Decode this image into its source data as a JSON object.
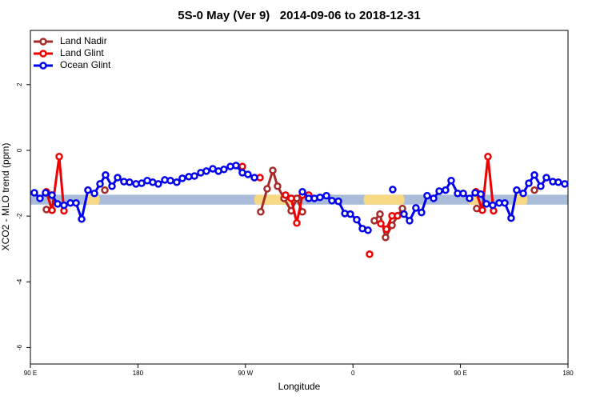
{
  "chart_data": {
    "type": "line",
    "title": "5S-0 May (Ver 9)   2014-09-06 to 2018-12-31",
    "x_label": "Longitude",
    "y_label": "XCO2 - MLO trend (ppm)",
    "xlim": [
      90,
      540
    ],
    "xticks": [
      {
        "value": 90,
        "label": "90 E"
      },
      {
        "value": 180,
        "label": "180"
      },
      {
        "value": 270,
        "label": "90 W"
      },
      {
        "value": 360,
        "label": "0"
      },
      {
        "value": 450,
        "label": "90 E"
      },
      {
        "value": 540,
        "label": "180"
      }
    ],
    "ylim": [
      -6.5,
      3.65
    ],
    "yticks": [
      2,
      0,
      -2,
      -4,
      -6
    ],
    "grid": false,
    "legend": "top-left",
    "land_mask": {
      "ylim": [
        -1.65,
        -1.35
      ],
      "color": "#a9bcd9",
      "land_color": "#f7d983",
      "land": [
        [
          137,
          148
        ],
        [
          277.5,
          311
        ],
        [
          369,
          403
        ],
        [
          456,
          466
        ],
        [
          495,
          506
        ]
      ]
    },
    "series": [
      {
        "name": "Land Nadir",
        "color": "#a52a2a",
        "x": [
          103.4,
          108.1,
          null,
          152.3,
          null,
          282.8,
          288.2,
          292.9,
          296.9,
          302.3,
          308.3,
          313.0,
          317.7,
          null,
          377.9,
          382.6,
          387.3,
          392.7,
          397.3,
          401.4,
          null,
          463.6,
          null,
          511.9
        ],
        "values": [
          -1.8,
          -1.82,
          null,
          -1.21,
          null,
          -1.87,
          -1.17,
          -0.61,
          -1.09,
          -1.46,
          -1.84,
          -1.46,
          -1.87,
          null,
          -2.14,
          -1.94,
          -2.65,
          -2.28,
          -1.99,
          -1.77,
          null,
          -1.77,
          null,
          -1.21
        ]
      },
      {
        "name": "Land Glint",
        "color": "#ee0000",
        "x": [
          103.4,
          108.1,
          114.1,
          118.1,
          null,
          267.4,
          null,
          282.2,
          null,
          303.6,
          308.3,
          313.0,
          317.7,
          323.0,
          null,
          373.9,
          null,
          383.3,
          388.0,
          392.7,
          397.3,
          null,
          463.0,
          468.3,
          473.0,
          477.7
        ],
        "values": [
          -1.26,
          -1.82,
          -0.19,
          -1.84,
          null,
          -0.49,
          null,
          -0.83,
          null,
          -1.36,
          -1.46,
          -2.21,
          -1.36,
          -1.36,
          null,
          -3.16,
          null,
          -2.23,
          -2.4,
          -1.99,
          -1.99,
          null,
          -1.26,
          -1.82,
          -0.19,
          -1.84
        ]
      },
      {
        "name": "Ocean Glint",
        "color": "#0000ee",
        "x": [
          93.3,
          98.0,
          102.7,
          108.1,
          112.8,
          118.1,
          123.5,
          128.2,
          132.9,
          138.2,
          143.6,
          148.3,
          152.9,
          158.3,
          163.0,
          168.3,
          173.0,
          178.4,
          183.1,
          187.8,
          192.4,
          197.1,
          202.5,
          207.2,
          212.5,
          217.2,
          222.6,
          227.3,
          232.6,
          237.3,
          242.7,
          247.4,
          252.0,
          257.4,
          262.1,
          267.4,
          272.1,
          277.5,
          null,
          317.7,
          323.0,
          327.7,
          332.4,
          337.8,
          342.4,
          347.8,
          353.2,
          357.8,
          363.2,
          367.9,
          372.6,
          null,
          393.3,
          null,
          402.7,
          407.4,
          412.7,
          417.4,
          422.1,
          427.5,
          432.2,
          437.5,
          442.2,
          447.6,
          452.3,
          457.6,
          462.3,
          467.0,
          471.7,
          477.0,
          482.4,
          487.1,
          492.4,
          497.1,
          502.5,
          507.2,
          511.9,
          517.2,
          521.9,
          527.3,
          531.9,
          537.3
        ],
        "values": [
          -1.29,
          -1.46,
          -1.29,
          -1.36,
          -1.63,
          -1.67,
          -1.6,
          -1.6,
          -2.09,
          -1.21,
          -1.31,
          -1.02,
          -0.75,
          -1.09,
          -0.83,
          -0.95,
          -0.97,
          -1.02,
          -1.0,
          -0.92,
          -0.97,
          -1.02,
          -0.9,
          -0.92,
          -0.97,
          -0.85,
          -0.8,
          -0.78,
          -0.68,
          -0.63,
          -0.56,
          -0.63,
          -0.58,
          -0.49,
          -0.46,
          -0.68,
          -0.73,
          -0.83,
          null,
          -1.26,
          -1.46,
          -1.46,
          -1.43,
          -1.38,
          -1.53,
          -1.55,
          -1.92,
          -1.94,
          -2.11,
          -2.38,
          -2.43,
          null,
          -1.19,
          null,
          -1.94,
          -2.14,
          -1.75,
          -1.89,
          -1.38,
          -1.46,
          -1.24,
          -1.21,
          -0.92,
          -1.31,
          -1.31,
          -1.46,
          -1.29,
          -1.33,
          -1.63,
          -1.67,
          -1.6,
          -1.6,
          -2.06,
          -1.21,
          -1.31,
          -1.0,
          -0.75,
          -1.09,
          -0.83,
          -0.95,
          -0.97,
          -1.02
        ]
      }
    ]
  }
}
